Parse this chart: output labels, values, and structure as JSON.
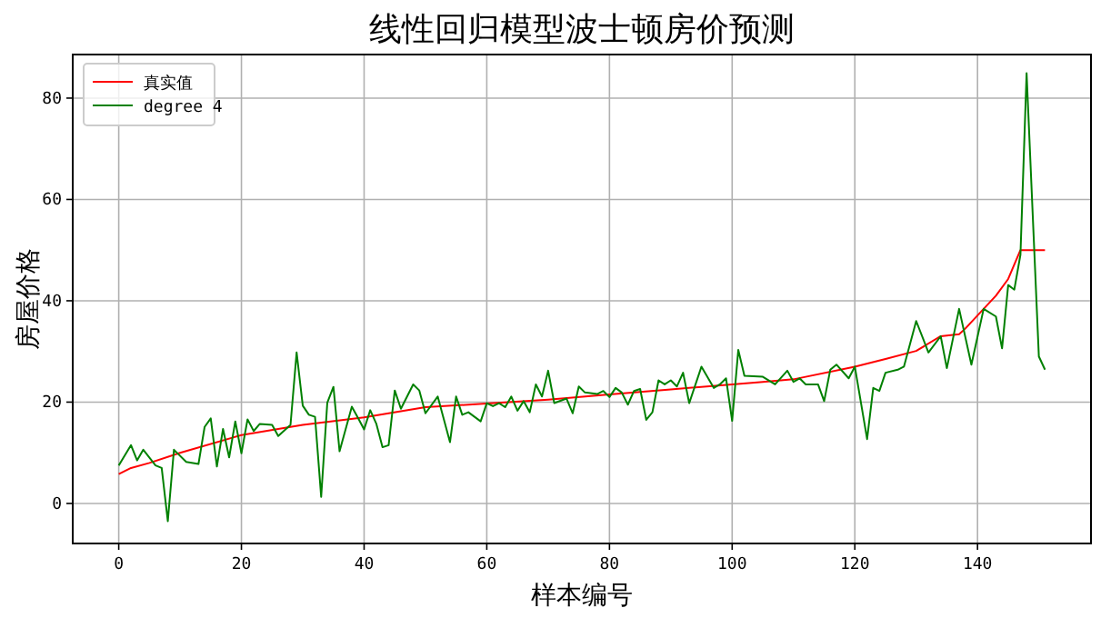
{
  "chart_data": {
    "type": "line",
    "title": "线性回归模型波士顿房价预测",
    "xlabel": "样本编号",
    "ylabel": "房屋价格",
    "xlim": [
      -7.5,
      158.5
    ],
    "ylim": [
      -7.9,
      88.6
    ],
    "xticks": [
      0,
      20,
      40,
      60,
      80,
      100,
      120,
      140
    ],
    "yticks": [
      0,
      20,
      40,
      60,
      80
    ],
    "grid": true,
    "legend": "top left",
    "marker": "none",
    "line_style": "solid",
    "series": [
      {
        "name": "真实值",
        "color": "#ff0000",
        "x": [
          0,
          2,
          5,
          10,
          20,
          30,
          40,
          50,
          60,
          70,
          80,
          90,
          100,
          105,
          110,
          120,
          125,
          130,
          134,
          137,
          138,
          141,
          143,
          145,
          147,
          151
        ],
        "values": [
          5.8,
          7,
          8,
          10,
          13.5,
          15.5,
          17,
          19,
          19.7,
          20.5,
          21.5,
          22.5,
          23.5,
          24,
          24.5,
          27,
          28.5,
          30.1,
          33,
          33.4,
          34.5,
          38.4,
          41,
          44.3,
          50,
          50
        ]
      },
      {
        "name": "degree 4",
        "color": "#008000",
        "x": [
          0,
          2,
          3,
          4,
          6,
          7,
          8,
          9,
          11,
          13,
          14,
          15,
          16,
          17,
          18,
          19,
          20,
          21,
          22,
          23,
          25,
          26,
          28,
          29,
          30,
          31,
          32,
          33,
          34,
          35,
          36,
          38,
          39,
          40,
          41,
          42,
          43,
          44,
          45,
          46,
          48,
          49,
          50,
          52,
          54,
          55,
          56,
          57,
          59,
          60,
          61,
          62,
          63,
          64,
          65,
          66,
          67,
          68,
          69,
          70,
          71,
          73,
          74,
          75,
          76,
          78,
          79,
          80,
          81,
          82,
          83,
          84,
          85,
          86,
          87,
          88,
          89,
          90,
          91,
          92,
          93,
          95,
          97,
          98,
          99,
          100,
          101,
          102,
          105,
          107,
          109,
          110,
          111,
          112,
          114,
          115,
          116,
          117,
          119,
          120,
          122,
          123,
          124,
          125,
          127,
          128,
          130,
          132,
          134,
          135,
          137,
          139,
          141,
          143,
          144,
          145,
          146,
          147,
          148,
          150,
          151
        ],
        "values": [
          7.5,
          11.5,
          8.5,
          10.6,
          7.5,
          7,
          -3.5,
          10.6,
          8.2,
          7.8,
          15.1,
          16.8,
          7.3,
          14.7,
          9.1,
          16.2,
          9.9,
          16.6,
          14.3,
          15.7,
          15.5,
          13.3,
          15.5,
          29.8,
          19.3,
          17.5,
          17.1,
          1.3,
          19.9,
          23,
          10.3,
          19.1,
          16.9,
          14.6,
          18.4,
          15.7,
          11.1,
          11.5,
          22.3,
          18.7,
          23.5,
          22.3,
          17.8,
          21.1,
          12.1,
          21.1,
          17.5,
          18,
          16.2,
          19.8,
          19.2,
          19.8,
          19,
          21.1,
          18.3,
          20.2,
          18,
          23.5,
          21.1,
          26.2,
          19.8,
          20.7,
          17.8,
          23.1,
          21.9,
          21.6,
          22.2,
          21,
          22.8,
          21.9,
          19.5,
          22.2,
          22.6,
          16.5,
          18,
          24.3,
          23.5,
          24.3,
          23.1,
          25.8,
          19.8,
          27,
          22.8,
          23.5,
          24.7,
          16.3,
          30.3,
          25.2,
          25,
          23.5,
          26.2,
          24,
          24.7,
          23.5,
          23.5,
          20.2,
          26.4,
          27.4,
          24.7,
          27,
          12.7,
          22.8,
          22.2,
          25.8,
          26.4,
          27,
          36,
          29.8,
          33,
          26.7,
          38.4,
          27.4,
          38.4,
          36.9,
          30.6,
          43.1,
          42.2,
          49.1,
          84.9,
          29,
          26.4
        ]
      }
    ]
  }
}
